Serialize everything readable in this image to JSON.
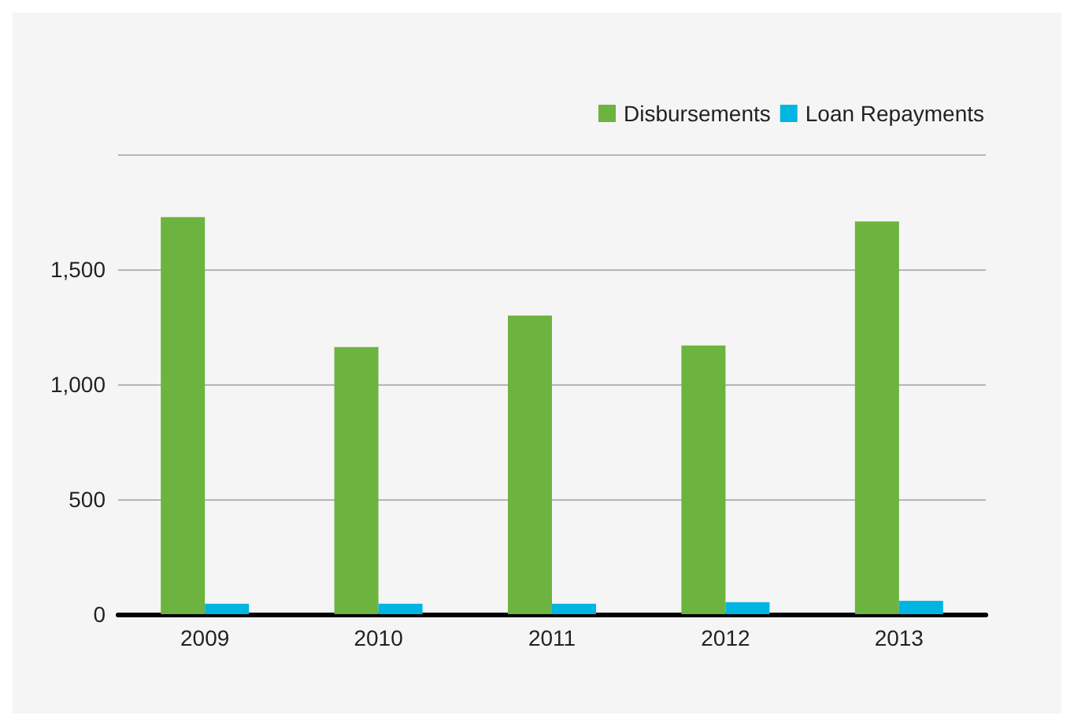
{
  "chart_data": {
    "type": "bar",
    "categories": [
      "2009",
      "2010",
      "2011",
      "2012",
      "2013"
    ],
    "series": [
      {
        "name": "Disbursements",
        "color": "#6db33f",
        "values": [
          1727,
          1162,
          1299,
          1169,
          1708
        ]
      },
      {
        "name": "Loan Repayments",
        "color": "#00b5e2",
        "values": [
          45,
          45,
          45,
          52,
          58
        ]
      }
    ],
    "ylim": [
      0,
      2000
    ],
    "yticks": [
      0,
      500,
      {
        "value": 1000,
        "label": "1,000"
      },
      {
        "value": 1500,
        "label": "1,500"
      },
      {
        "value": 2000,
        "label": null
      }
    ],
    "grid": "y",
    "legend": "top right"
  }
}
